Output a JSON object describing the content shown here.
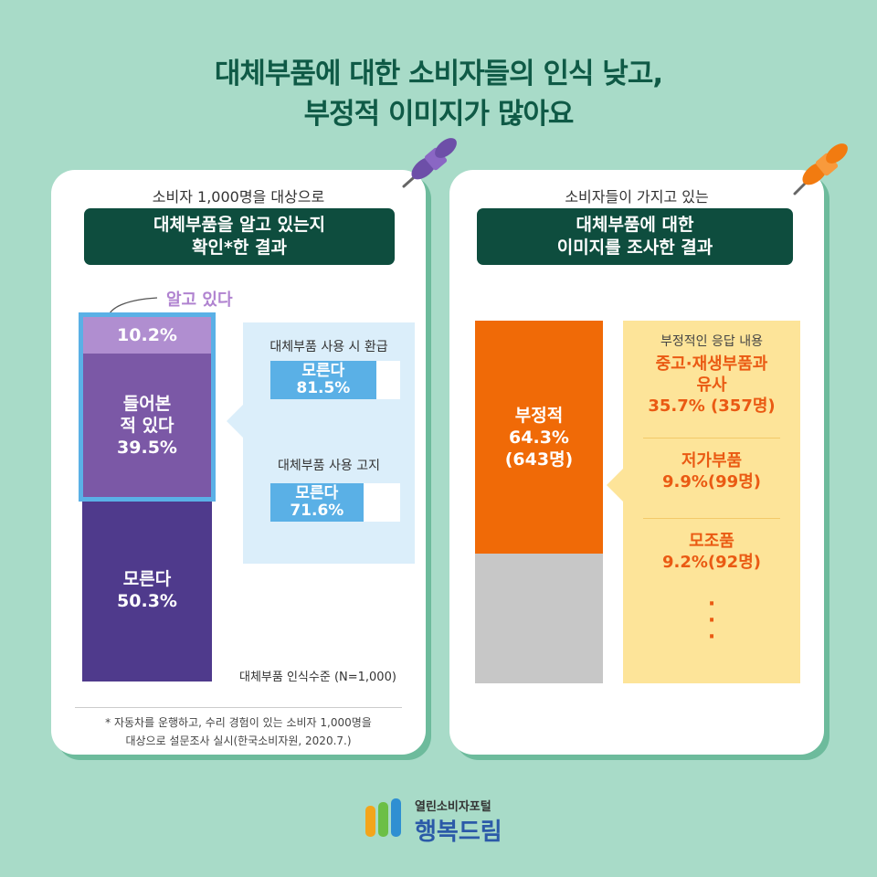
{
  "title": {
    "line1": "대체부품에 대한 소비자들의 인식 낮고,",
    "line2": "부정적 이미지가 많아요"
  },
  "left_card": {
    "subtitle": "소비자 1,000명을 대상으로",
    "heading_line1": "대체부품을 알고 있는지",
    "heading_line2": "확인*한 결과",
    "know_label": "알고 있다",
    "segments": {
      "know_value": "10.2%",
      "heard_line1": "들어본",
      "heard_line2": "적 있다",
      "heard_value": "39.5%",
      "dont_line1": "모른다",
      "dont_value": "50.3%"
    },
    "sub_questions": [
      {
        "label": "대체부품 사용 시 환급",
        "answer": "모른다",
        "value": "81.5%"
      },
      {
        "label": "대체부품 사용 고지",
        "answer": "모른다",
        "value": "71.6%"
      }
    ],
    "caption": "대체부품 인식수준 (N=1,000)",
    "footnote_line1": "* 자동차를 운행하고, 수리 경험이 있는 소비자 1,000명을",
    "footnote_line2": "대상으로 설문조사 실시(한국소비자원, 2020.7.)"
  },
  "right_card": {
    "subtitle": "소비자들이 가지고 있는",
    "heading_line1": "대체부품에 대한",
    "heading_line2": "이미지를 조사한 결과",
    "negative_line1": "부정적",
    "negative_line2": "64.3%",
    "negative_line3": "(643명)",
    "details_label": "부정적인 응답 내용",
    "details": [
      {
        "line1": "중고·재생부품과",
        "line2": "유사",
        "line3": "35.7% (357명)"
      },
      {
        "line1": "저가부품",
        "line2": "9.9%(99명)"
      },
      {
        "line1": "모조품",
        "line2": "9.2%(92명)"
      }
    ],
    "more": "·\n·\n·"
  },
  "logo": {
    "small": "열린소비자포털",
    "big": "행복드림"
  },
  "colors": {
    "background": "#a8dbc8",
    "title": "#0f5a46",
    "know": "#b08ed0",
    "heard": "#7b58a6",
    "dont_know": "#4f3a8c",
    "highlight": "#5ab0e6",
    "negative": "#f06a07",
    "other": "#c7c7c7",
    "detail_box": "#fde499"
  },
  "chart_data": [
    {
      "type": "bar",
      "stacked": true,
      "categories": [
        "대체부품 인식수준 (N=1,000)"
      ],
      "series": [
        {
          "name": "알고 있다",
          "values": [
            10.2
          ]
        },
        {
          "name": "들어본 적 있다",
          "values": [
            39.5
          ]
        },
        {
          "name": "모른다",
          "values": [
            50.3
          ]
        }
      ],
      "sub_bars": [
        {
          "label": "대체부품 사용 시 환급",
          "category": "모른다",
          "value": 81.5
        },
        {
          "label": "대체부품 사용 고지",
          "category": "모른다",
          "value": 71.6
        }
      ]
    },
    {
      "type": "bar",
      "stacked": true,
      "categories": [
        "대체부품 이미지"
      ],
      "series": [
        {
          "name": "부정적",
          "values": [
            64.3
          ]
        },
        {
          "values": [
            35.7
          ]
        }
      ],
      "breakdown": [
        {
          "label": "중고·재생부품과 유사",
          "value": 35.7,
          "count": 357
        },
        {
          "label": "저가부품",
          "value": 9.9,
          "count": 99
        },
        {
          "label": "모조품",
          "value": 9.2,
          "count": 92
        }
      ]
    }
  ]
}
